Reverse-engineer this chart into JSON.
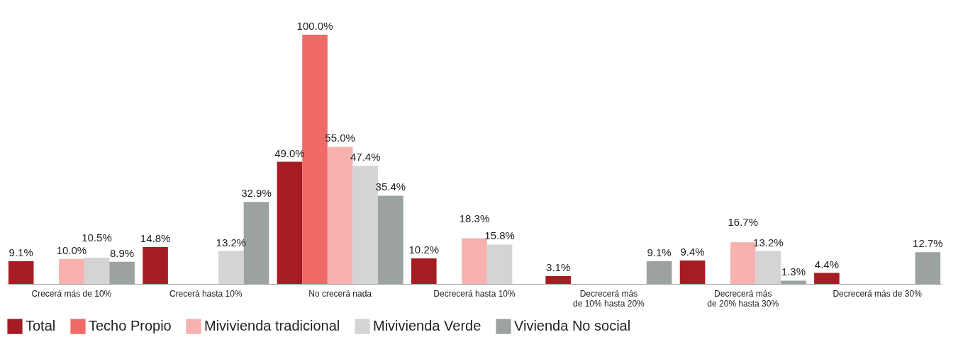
{
  "chart_data": {
    "type": "bar",
    "categories": [
      "Crecerá más de 10%",
      "Crecerá hasta 10%",
      "No crecerá nada",
      "Decrecerá hasta 10%",
      "Decrecerá más\nde 10% hasta 20%",
      "Decrecerá más\nde 20% hasta 30%",
      "Decrecerá más de 30%"
    ],
    "series": [
      {
        "name": "Total",
        "color": "#a51d22",
        "values": [
          9.1,
          14.8,
          49.0,
          10.2,
          3.1,
          9.4,
          4.4
        ],
        "value_labels": [
          "9.1%",
          "14.8%",
          "49.0%",
          "10.2%",
          "3.1%",
          "9.4%",
          "4.4%"
        ]
      },
      {
        "name": "Techo Propio",
        "color": "#f06a67",
        "values": [
          null,
          null,
          100.0,
          null,
          null,
          null,
          null
        ],
        "value_labels": [
          null,
          null,
          "100.0%",
          null,
          null,
          null,
          null
        ]
      },
      {
        "name": "Mivivienda tradicional",
        "color": "#f7b1af",
        "values": [
          10.0,
          null,
          55.0,
          18.3,
          null,
          16.7,
          null
        ],
        "value_labels": [
          "10.0%",
          null,
          "55.0%",
          "18.3%",
          null,
          "16.7%",
          null
        ]
      },
      {
        "name": "Mivivienda Verde",
        "color": "#d3d4d3",
        "values": [
          10.5,
          13.2,
          47.4,
          15.8,
          null,
          13.2,
          null
        ],
        "value_labels": [
          "10.5%",
          "13.2%",
          "47.4%",
          "15.8%",
          null,
          "13.2%",
          null
        ]
      },
      {
        "name": "Vivienda No social",
        "color": "#9ca1a1",
        "values": [
          8.9,
          32.9,
          35.4,
          null,
          9.1,
          1.3,
          12.7
        ],
        "value_labels": [
          "8.9%",
          "32.9%",
          "35.4%",
          null,
          "9.1%",
          "1.3%",
          "12.7%"
        ]
      }
    ],
    "legend": "bottom",
    "grid": false
  }
}
